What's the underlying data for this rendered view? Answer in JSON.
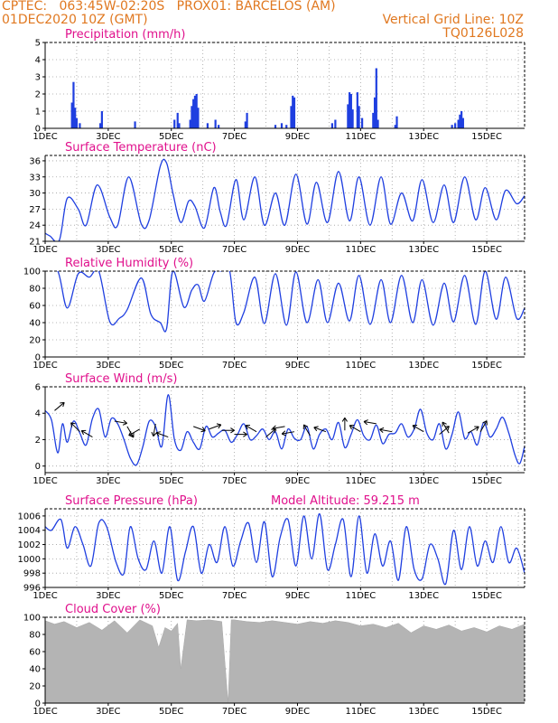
{
  "header": {
    "line1_left": "CPTEC:   063:45W-02:20S   PROX01: BARCELOS (AM)",
    "line2_left": "01DEC2020 10Z (GMT)",
    "line2_right": "Vertical Grid Line: 10Z",
    "line3_right": "TQ0126L028"
  },
  "chart_data": [
    {
      "name": "precipitation",
      "type": "bar",
      "title": "Precipitation (mm/h)",
      "ylim": [
        0,
        5
      ],
      "yticks": [
        0,
        1,
        2,
        3,
        4,
        5
      ],
      "xlim": [
        0,
        15.2
      ],
      "xticks": [
        "1DEC",
        "3DEC",
        "5DEC",
        "7DEC",
        "9DEC",
        "11DEC",
        "13DEC",
        "15DEC"
      ],
      "color": "#1f3fe0",
      "bars": [
        [
          0.85,
          1.5
        ],
        [
          0.9,
          2.7
        ],
        [
          0.95,
          1.2
        ],
        [
          1.0,
          0.6
        ],
        [
          1.1,
          0.3
        ],
        [
          1.75,
          0.3
        ],
        [
          1.8,
          1.0
        ],
        [
          2.85,
          0.4
        ],
        [
          4.1,
          0.5
        ],
        [
          4.2,
          0.9
        ],
        [
          4.25,
          0.3
        ],
        [
          4.6,
          0.5
        ],
        [
          4.65,
          1.3
        ],
        [
          4.7,
          1.7
        ],
        [
          4.75,
          1.9
        ],
        [
          4.8,
          2.0
        ],
        [
          4.85,
          1.2
        ],
        [
          5.15,
          0.3
        ],
        [
          5.4,
          0.5
        ],
        [
          5.5,
          0.2
        ],
        [
          6.35,
          0.4
        ],
        [
          6.4,
          0.9
        ],
        [
          7.3,
          0.2
        ],
        [
          7.5,
          0.3
        ],
        [
          7.65,
          0.2
        ],
        [
          7.8,
          1.3
        ],
        [
          7.85,
          1.9
        ],
        [
          7.9,
          1.8
        ],
        [
          9.1,
          0.3
        ],
        [
          9.2,
          0.5
        ],
        [
          9.6,
          1.4
        ],
        [
          9.65,
          2.1
        ],
        [
          9.7,
          2.0
        ],
        [
          9.75,
          1.1
        ],
        [
          9.9,
          2.1
        ],
        [
          9.95,
          1.3
        ],
        [
          10.05,
          0.6
        ],
        [
          10.4,
          0.9
        ],
        [
          10.45,
          1.8
        ],
        [
          10.5,
          3.5
        ],
        [
          10.55,
          0.5
        ],
        [
          11.1,
          0.2
        ],
        [
          11.15,
          0.7
        ],
        [
          12.9,
          0.2
        ],
        [
          13.0,
          0.3
        ],
        [
          13.1,
          0.5
        ],
        [
          13.15,
          0.8
        ],
        [
          13.2,
          1.0
        ],
        [
          13.25,
          0.6
        ]
      ]
    },
    {
      "name": "temperature",
      "type": "line",
      "title": "Surface Temperature (nC)",
      "ylim": [
        21,
        37
      ],
      "yticks": [
        21,
        24,
        27,
        30,
        33,
        36
      ],
      "xlim": [
        0,
        15.2
      ],
      "xticks": [
        "1DEC",
        "3DEC",
        "5DEC",
        "7DEC",
        "9DEC",
        "11DEC",
        "13DEC",
        "15DEC"
      ],
      "color": "#1f3fe0",
      "x": [
        0,
        0.15,
        0.45,
        0.7,
        1.05,
        1.3,
        1.65,
        2.05,
        2.3,
        2.65,
        3.05,
        3.3,
        3.65,
        3.85,
        4.05,
        4.3,
        4.55,
        4.75,
        5.05,
        5.35,
        5.55,
        5.75,
        6.05,
        6.3,
        6.65,
        6.95,
        7.3,
        7.6,
        7.95,
        8.3,
        8.6,
        8.95,
        9.3,
        9.65,
        9.95,
        10.3,
        10.65,
        10.95,
        11.3,
        11.65,
        11.95,
        12.3,
        12.65,
        12.95,
        13.3,
        13.65,
        13.95,
        14.3,
        14.6,
        14.95,
        15.2
      ],
      "values": [
        22.5,
        22.0,
        21.2,
        29.0,
        27.0,
        24.0,
        31.5,
        25.5,
        24.0,
        33.0,
        24.2,
        25.0,
        35.0,
        35.6,
        30.0,
        24.5,
        28.5,
        27.5,
        23.5,
        31.0,
        26.5,
        24.0,
        32.5,
        25.0,
        33.0,
        24.0,
        30.0,
        24.0,
        33.5,
        24.2,
        32.0,
        24.5,
        34.0,
        24.8,
        33.0,
        24.0,
        33.0,
        24.2,
        30.0,
        24.8,
        32.5,
        24.5,
        31.5,
        24.5,
        33.0,
        25.0,
        31.0,
        25.0,
        30.5,
        28.0,
        29.5
      ]
    },
    {
      "name": "humidity",
      "type": "line",
      "title": "Relative Humidity (%)",
      "ylim": [
        0,
        100
      ],
      "yticks": [
        0,
        20,
        40,
        60,
        80,
        100
      ],
      "xlim": [
        0,
        15.2
      ],
      "xticks": [
        "1DEC",
        "3DEC",
        "5DEC",
        "7DEC",
        "9DEC",
        "11DEC",
        "13DEC",
        "15DEC"
      ],
      "color": "#1f3fe0",
      "x": [
        0,
        0.4,
        0.7,
        1.05,
        1.4,
        1.7,
        2.05,
        2.35,
        2.6,
        3.05,
        3.35,
        3.65,
        3.85,
        4.05,
        4.4,
        4.65,
        4.85,
        5.05,
        5.35,
        5.6,
        5.85,
        6.05,
        6.3,
        6.65,
        6.95,
        7.3,
        7.65,
        7.95,
        8.3,
        8.65,
        8.95,
        9.3,
        9.65,
        9.95,
        10.3,
        10.65,
        10.95,
        11.3,
        11.65,
        11.95,
        12.3,
        12.65,
        12.95,
        13.3,
        13.65,
        13.95,
        14.3,
        14.6,
        14.95,
        15.2
      ],
      "values": [
        100,
        100,
        57,
        97,
        93,
        100,
        41,
        45,
        55,
        92,
        50,
        40,
        33,
        100,
        58,
        78,
        84,
        65,
        98,
        100,
        100,
        40,
        52,
        93,
        39,
        97,
        37,
        99,
        40,
        90,
        40,
        86,
        42,
        95,
        38,
        90,
        40,
        95,
        40,
        90,
        37,
        86,
        41,
        95,
        38,
        100,
        44,
        93,
        45,
        57
      ]
    },
    {
      "name": "wind",
      "type": "line",
      "title": "Surface Wind (m/s)",
      "ylim": [
        -0.5,
        6
      ],
      "yticks": [
        0,
        2,
        4,
        6
      ],
      "xlim": [
        0,
        15.2
      ],
      "xticks": [
        "1DEC",
        "3DEC",
        "5DEC",
        "7DEC",
        "9DEC",
        "11DEC",
        "13DEC",
        "15DEC"
      ],
      "color": "#1f3fe0",
      "x": [
        0,
        0.2,
        0.4,
        0.55,
        0.7,
        0.9,
        1.1,
        1.3,
        1.5,
        1.7,
        1.9,
        2.1,
        2.3,
        2.5,
        2.7,
        2.9,
        3.1,
        3.3,
        3.5,
        3.7,
        3.9,
        4.1,
        4.3,
        4.5,
        4.7,
        4.9,
        5.1,
        5.3,
        5.5,
        5.7,
        5.9,
        6.1,
        6.3,
        6.5,
        6.7,
        6.9,
        7.1,
        7.3,
        7.5,
        7.7,
        7.9,
        8.1,
        8.3,
        8.5,
        8.7,
        8.9,
        9.1,
        9.3,
        9.5,
        9.7,
        9.9,
        10.1,
        10.3,
        10.5,
        10.7,
        10.9,
        11.1,
        11.3,
        11.5,
        11.7,
        11.9,
        12.1,
        12.3,
        12.5,
        12.7,
        12.9,
        13.1,
        13.3,
        13.5,
        13.7,
        13.9,
        14.1,
        14.3,
        14.5,
        14.7,
        14.9,
        15.05,
        15.2
      ],
      "values": [
        4.2,
        3.5,
        1.0,
        3.2,
        1.8,
        3.4,
        2.5,
        1.6,
        3.6,
        4.3,
        2.2,
        3.6,
        3.2,
        2.0,
        0.6,
        0.1,
        1.5,
        3.4,
        3.0,
        1.5,
        5.4,
        2.0,
        1.2,
        2.6,
        1.8,
        1.3,
        3.0,
        2.2,
        2.5,
        2.7,
        1.8,
        2.4,
        3.2,
        2.0,
        2.3,
        2.8,
        2.0,
        2.6,
        1.3,
        2.8,
        2.1,
        2.0,
        3.0,
        1.3,
        2.4,
        2.8,
        2.0,
        3.3,
        1.4,
        2.4,
        3.5,
        2.3,
        2.0,
        3.1,
        1.7,
        2.4,
        2.5,
        3.2,
        2.2,
        2.8,
        4.3,
        2.5,
        2.0,
        3.2,
        1.3,
        2.4,
        4.1,
        2.1,
        2.6,
        1.6,
        3.3,
        2.2,
        2.8,
        3.7,
        2.5,
        0.8,
        0.2,
        1.5
      ]
    },
    {
      "name": "pressure",
      "type": "line",
      "title": "Surface Pressure (hPa)",
      "subtitle": "Model Altitude: 59.215 m",
      "ylim": [
        996,
        1007
      ],
      "yticks": [
        996,
        998,
        1000,
        1002,
        1004,
        1006
      ],
      "xlim": [
        0,
        15.2
      ],
      "xticks": [
        "1DEC",
        "3DEC",
        "5DEC",
        "7DEC",
        "9DEC",
        "11DEC",
        "13DEC",
        "15DEC"
      ],
      "color": "#1f3fe0",
      "x": [
        0,
        0.2,
        0.5,
        0.7,
        0.95,
        1.2,
        1.45,
        1.7,
        1.95,
        2.25,
        2.5,
        2.7,
        2.95,
        3.2,
        3.45,
        3.7,
        3.95,
        4.2,
        4.45,
        4.7,
        4.95,
        5.2,
        5.45,
        5.7,
        5.95,
        6.2,
        6.45,
        6.7,
        6.95,
        7.2,
        7.45,
        7.7,
        7.95,
        8.2,
        8.45,
        8.7,
        8.95,
        9.2,
        9.45,
        9.7,
        9.95,
        10.2,
        10.45,
        10.7,
        10.95,
        11.2,
        11.45,
        11.7,
        11.95,
        12.2,
        12.45,
        12.7,
        12.95,
        13.2,
        13.45,
        13.7,
        13.95,
        14.2,
        14.45,
        14.7,
        14.95,
        15.2
      ],
      "values": [
        1004.5,
        1004.0,
        1005.5,
        1001.5,
        1004.5,
        1002.0,
        999.0,
        1005.0,
        1004.5,
        999.5,
        998.0,
        1004.5,
        1000.0,
        998.5,
        1002.5,
        998.0,
        1004.5,
        997.0,
        1001.0,
        1004.5,
        998.0,
        1002.0,
        999.5,
        1004.5,
        999.0,
        1002.5,
        1005.0,
        999.5,
        1005.2,
        997.5,
        1003.0,
        1005.5,
        999.0,
        1006.0,
        1000.0,
        1006.3,
        998.5,
        1002.0,
        1005.5,
        997.5,
        1006.0,
        998.0,
        1003.5,
        999.0,
        1002.5,
        997.0,
        1004.5,
        998.5,
        997.2,
        1002.0,
        1000.0,
        996.5,
        1004.0,
        998.5,
        1004.5,
        999.0,
        1002.5,
        999.5,
        1004.5,
        999.5,
        1001.5,
        998.0
      ]
    },
    {
      "name": "cloud",
      "type": "area",
      "title": "Cloud Cover (%)",
      "ylim": [
        0,
        100
      ],
      "yticks": [
        0,
        20,
        40,
        60,
        80,
        100
      ],
      "xlim": [
        0,
        15.2
      ],
      "xticks": [
        "1DEC",
        "3DEC",
        "5DEC",
        "7DEC",
        "9DEC",
        "11DEC",
        "13DEC",
        "15DEC"
      ],
      "color": "#b4b4b4",
      "x": [
        0,
        0.3,
        0.6,
        1.0,
        1.4,
        1.8,
        2.2,
        2.6,
        3.0,
        3.4,
        3.6,
        3.8,
        4.0,
        4.2,
        4.3,
        4.5,
        4.8,
        5.2,
        5.6,
        5.8,
        5.9,
        6.0,
        6.4,
        6.8,
        7.2,
        7.6,
        8.0,
        8.4,
        8.8,
        9.2,
        9.6,
        10.0,
        10.4,
        10.8,
        11.2,
        11.6,
        12.0,
        12.4,
        12.8,
        13.2,
        13.6,
        14.0,
        14.4,
        14.8,
        15.2
      ],
      "values": [
        96,
        92,
        95,
        88,
        94,
        85,
        96,
        82,
        97,
        90,
        65,
        88,
        84,
        93,
        40,
        97,
        96,
        97,
        95,
        0,
        97,
        97,
        95,
        94,
        96,
        94,
        92,
        95,
        93,
        96,
        94,
        90,
        92,
        88,
        93,
        82,
        90,
        86,
        91,
        84,
        88,
        83,
        90,
        86,
        92
      ]
    }
  ]
}
